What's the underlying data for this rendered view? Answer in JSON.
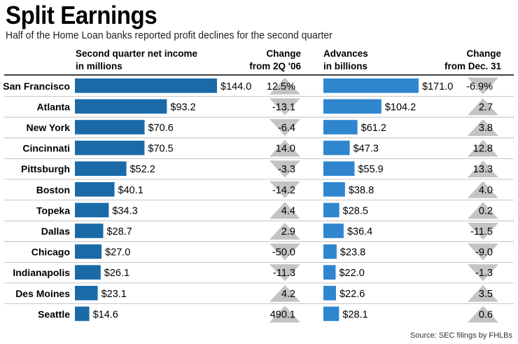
{
  "title": "Split Earnings",
  "subtitle": "Half of the Home Loan banks reported profit declines for the second quarter",
  "source": "Source: SEC filings by FHLBs",
  "colors": {
    "income_bar": "#1a6aa8",
    "advances_bar": "#2f86cf",
    "arrow": "#c4c4c4",
    "divider": "#b5b5b5",
    "header_rule": "#000000"
  },
  "chart_data": {
    "type": "bar",
    "orientation": "horizontal",
    "categories": [
      "San Francisco",
      "Atlanta",
      "New York",
      "Cincinnati",
      "Pittsburgh",
      "Boston",
      "Topeka",
      "Dallas",
      "Chicago",
      "Indianapolis",
      "Des Moines",
      "Seattle"
    ],
    "columns": [
      {
        "header": [
          "Second quarter net income",
          "in millions"
        ]
      },
      {
        "header": [
          "Change",
          "from 2Q '06"
        ]
      },
      {
        "header": [
          "Advances",
          "in billions"
        ]
      },
      {
        "header": [
          "Change",
          "from Dec. 31"
        ]
      }
    ],
    "series": [
      {
        "values": [
          144.0,
          93.2,
          70.6,
          70.5,
          52.2,
          40.1,
          34.3,
          28.7,
          27.0,
          26.1,
          23.1,
          14.6
        ],
        "labels": [
          "$144.0",
          "$93.2",
          "$70.6",
          "$70.5",
          "$52.2",
          "$40.1",
          "$34.3",
          "$28.7",
          "$27.0",
          "$26.1",
          "$23.1",
          "$14.6"
        ],
        "change": [
          12.5,
          -13.1,
          -6.4,
          14.0,
          -3.3,
          -14.2,
          4.4,
          2.9,
          -50.0,
          -11.3,
          4.2,
          490.1
        ],
        "change_labels": [
          "12.5%",
          "-13.1",
          "-6.4",
          "14.0",
          "-3.3",
          "-14.2",
          "4.4",
          "2.9",
          "-50.0",
          "-11.3",
          "4.2",
          "490.1"
        ]
      },
      {
        "values": [
          171.0,
          104.2,
          61.2,
          47.3,
          55.9,
          38.8,
          28.5,
          36.4,
          23.8,
          22.0,
          22.6,
          28.1
        ],
        "labels": [
          "$171.0",
          "$104.2",
          "$61.2",
          "$47.3",
          "$55.9",
          "$38.8",
          "$28.5",
          "$36.4",
          "$23.8",
          "$22.0",
          "$22.6",
          "$28.1"
        ],
        "change": [
          -6.9,
          2.7,
          3.8,
          12.8,
          13.3,
          4.0,
          0.2,
          -11.5,
          -9.0,
          -1.3,
          3.5,
          0.6
        ],
        "change_labels": [
          "-6.9%",
          "2.7",
          "3.8",
          "12.8",
          "13.3",
          "4.0",
          "0.2",
          "-11.5",
          "-9.0",
          "-1.3",
          "3.5",
          "0.6"
        ]
      }
    ]
  }
}
